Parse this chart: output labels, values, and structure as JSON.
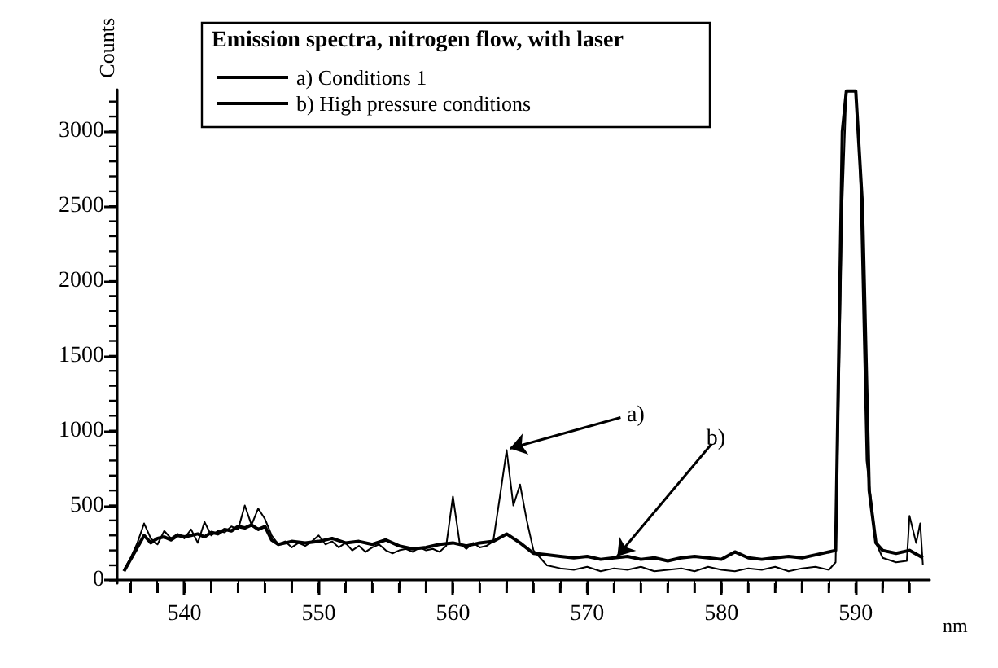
{
  "chart_data": {
    "type": "line",
    "legend_title": "Emission spectra, nitrogen flow, with laser",
    "xlabel": "nm",
    "ylabel": "Counts",
    "legend": "top left",
    "marker": "none",
    "line_style": "solid",
    "grid": false,
    "xlim": [
      535,
      595.5
    ],
    "xticks": [
      540,
      550,
      560,
      570,
      580,
      590
    ],
    "ylim": [
      -20,
      3280
    ],
    "yticks": [
      0,
      500,
      {
        "value": 1000,
        "label": "1000"
      },
      {
        "value": 1500,
        "label": "1500"
      },
      {
        "value": 2000,
        "label": "2000"
      },
      {
        "value": 2500,
        "label": "2500"
      },
      {
        "value": 3000,
        "label": "3000"
      }
    ],
    "series": [
      {
        "name": "a) Conditions 1",
        "color": "#000000",
        "x": [
          535.5,
          536,
          536.5,
          537,
          537.5,
          538,
          538.5,
          539,
          539.5,
          540,
          540.5,
          541,
          541.5,
          542,
          542.5,
          543,
          543.5,
          544,
          544.5,
          545,
          545.5,
          546,
          546.5,
          547,
          547.5,
          548,
          548.5,
          549,
          549.5,
          550,
          550.5,
          551,
          551.5,
          552,
          552.5,
          553,
          553.5,
          554,
          554.5,
          555,
          555.5,
          556,
          556.5,
          557,
          557.5,
          558,
          558.5,
          559,
          559.5,
          560,
          560.5,
          561,
          561.5,
          562,
          562.5,
          563,
          563.5,
          564,
          564.5,
          565,
          565.5,
          566,
          566.5,
          567,
          568,
          569,
          570,
          571,
          572,
          573,
          574,
          575,
          576,
          577,
          578,
          579,
          580,
          581,
          582,
          583,
          584,
          585,
          586,
          587,
          588,
          588.5,
          589,
          589.3,
          590,
          590.3,
          590.8,
          591.5,
          592,
          593,
          593.8,
          594,
          594.5,
          594.8,
          595
        ],
        "values": [
          70,
          150,
          250,
          380,
          280,
          240,
          330,
          280,
          310,
          280,
          340,
          250,
          390,
          300,
          330,
          320,
          360,
          340,
          500,
          370,
          480,
          410,
          300,
          240,
          260,
          220,
          250,
          230,
          260,
          300,
          240,
          260,
          220,
          250,
          200,
          230,
          190,
          220,
          240,
          200,
          180,
          200,
          210,
          190,
          220,
          200,
          210,
          190,
          230,
          560,
          250,
          210,
          250,
          220,
          230,
          260,
          560,
          870,
          500,
          640,
          400,
          200,
          150,
          100,
          80,
          70,
          90,
          60,
          80,
          70,
          90,
          60,
          70,
          80,
          60,
          90,
          70,
          60,
          80,
          70,
          90,
          60,
          80,
          90,
          70,
          120,
          2500,
          3270,
          3270,
          2800,
          800,
          250,
          150,
          120,
          130,
          430,
          250,
          380,
          100
        ]
      },
      {
        "name": "b) High pressure conditions",
        "color": "#000000",
        "x": [
          535.5,
          536,
          536.5,
          537,
          537.5,
          538,
          538.5,
          539,
          539.5,
          540,
          540.5,
          541,
          541.5,
          542,
          542.5,
          543,
          543.5,
          544,
          544.5,
          545,
          545.5,
          546,
          546.5,
          547,
          548,
          549,
          550,
          551,
          552,
          553,
          554,
          555,
          556,
          557,
          558,
          559,
          560,
          561,
          562,
          563,
          564,
          565,
          566,
          567,
          568,
          569,
          570,
          571,
          572,
          573,
          574,
          575,
          576,
          577,
          578,
          579,
          580,
          581,
          582,
          583,
          584,
          585,
          586,
          587,
          588,
          588.5,
          589,
          589.3,
          590,
          590.5,
          591,
          591.5,
          592,
          593,
          594,
          595
        ],
        "values": [
          60,
          140,
          220,
          300,
          250,
          280,
          290,
          270,
          300,
          290,
          300,
          310,
          290,
          320,
          310,
          340,
          330,
          360,
          350,
          370,
          340,
          360,
          270,
          240,
          260,
          250,
          260,
          280,
          250,
          260,
          240,
          270,
          230,
          210,
          220,
          240,
          250,
          230,
          250,
          260,
          310,
          250,
          180,
          170,
          160,
          150,
          160,
          140,
          150,
          160,
          140,
          150,
          130,
          150,
          160,
          150,
          140,
          190,
          150,
          140,
          150,
          160,
          150,
          170,
          190,
          200,
          3000,
          3270,
          3270,
          2500,
          600,
          250,
          200,
          180,
          200,
          150
        ]
      }
    ],
    "annotations": [
      {
        "text": "a)",
        "x": 564,
        "y": 870
      },
      {
        "text": "b)",
        "x": 572,
        "y": 150
      }
    ]
  }
}
